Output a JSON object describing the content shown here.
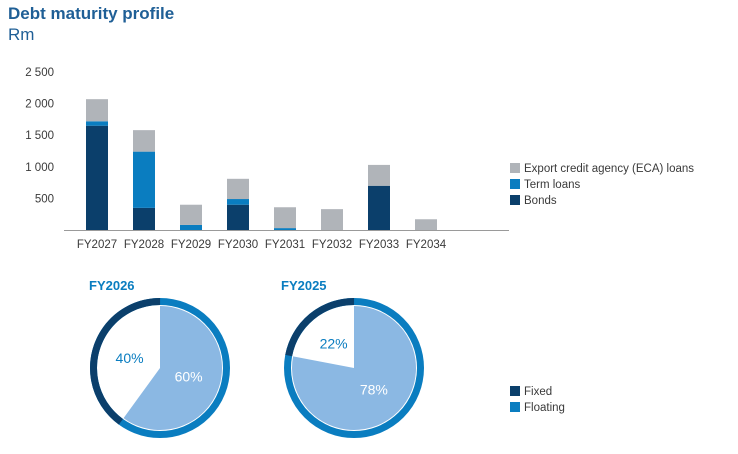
{
  "title": "Debt maturity profile",
  "subtitle": "Rm",
  "colors": {
    "bonds": "#0b3f6b",
    "term": "#0a7dc0",
    "eca": "#b0b4b9",
    "fixed": "#0b3f6b",
    "floating": "#0a7dc0",
    "floating_inner": "#8bb8e3",
    "axis": "#9a9a9a",
    "pie_title": "#0a7dc0"
  },
  "chart_data": [
    {
      "type": "bar",
      "stacked": true,
      "title": "Debt maturity profile",
      "unit": "Rm",
      "categories": [
        "FY2027",
        "FY2028",
        "FY2029",
        "FY2030",
        "FY2031",
        "FY2032",
        "FY2033",
        "FY2034"
      ],
      "series": [
        {
          "name": "Bonds",
          "values": [
            1650,
            350,
            0,
            400,
            0,
            0,
            700,
            0
          ]
        },
        {
          "name": "Term loans",
          "values": [
            70,
            890,
            80,
            90,
            30,
            0,
            0,
            0
          ]
        },
        {
          "name": "Export credit agency (ECA) loans",
          "values": [
            350,
            340,
            320,
            320,
            330,
            330,
            330,
            170
          ]
        }
      ],
      "ylim": [
        0,
        2500
      ],
      "yticks": [
        500,
        1000,
        1500,
        2000,
        2500
      ],
      "ytick_labels": [
        "500",
        "1 000",
        "1 500",
        "2 000",
        "2 500"
      ],
      "legend_position": "right",
      "legend": [
        "Export credit agency (ECA) loans",
        "Term loans",
        "Bonds"
      ]
    },
    {
      "type": "pie",
      "title": "FY2026",
      "labels": [
        "Fixed",
        "Floating"
      ],
      "values": [
        40,
        60
      ],
      "value_labels": [
        "40%",
        "60%"
      ]
    },
    {
      "type": "pie",
      "title": "FY2025",
      "labels": [
        "Fixed",
        "Floating"
      ],
      "values": [
        22,
        78
      ],
      "value_labels": [
        "22%",
        "78%"
      ]
    }
  ],
  "pie_legend": [
    "Fixed",
    "Floating"
  ]
}
